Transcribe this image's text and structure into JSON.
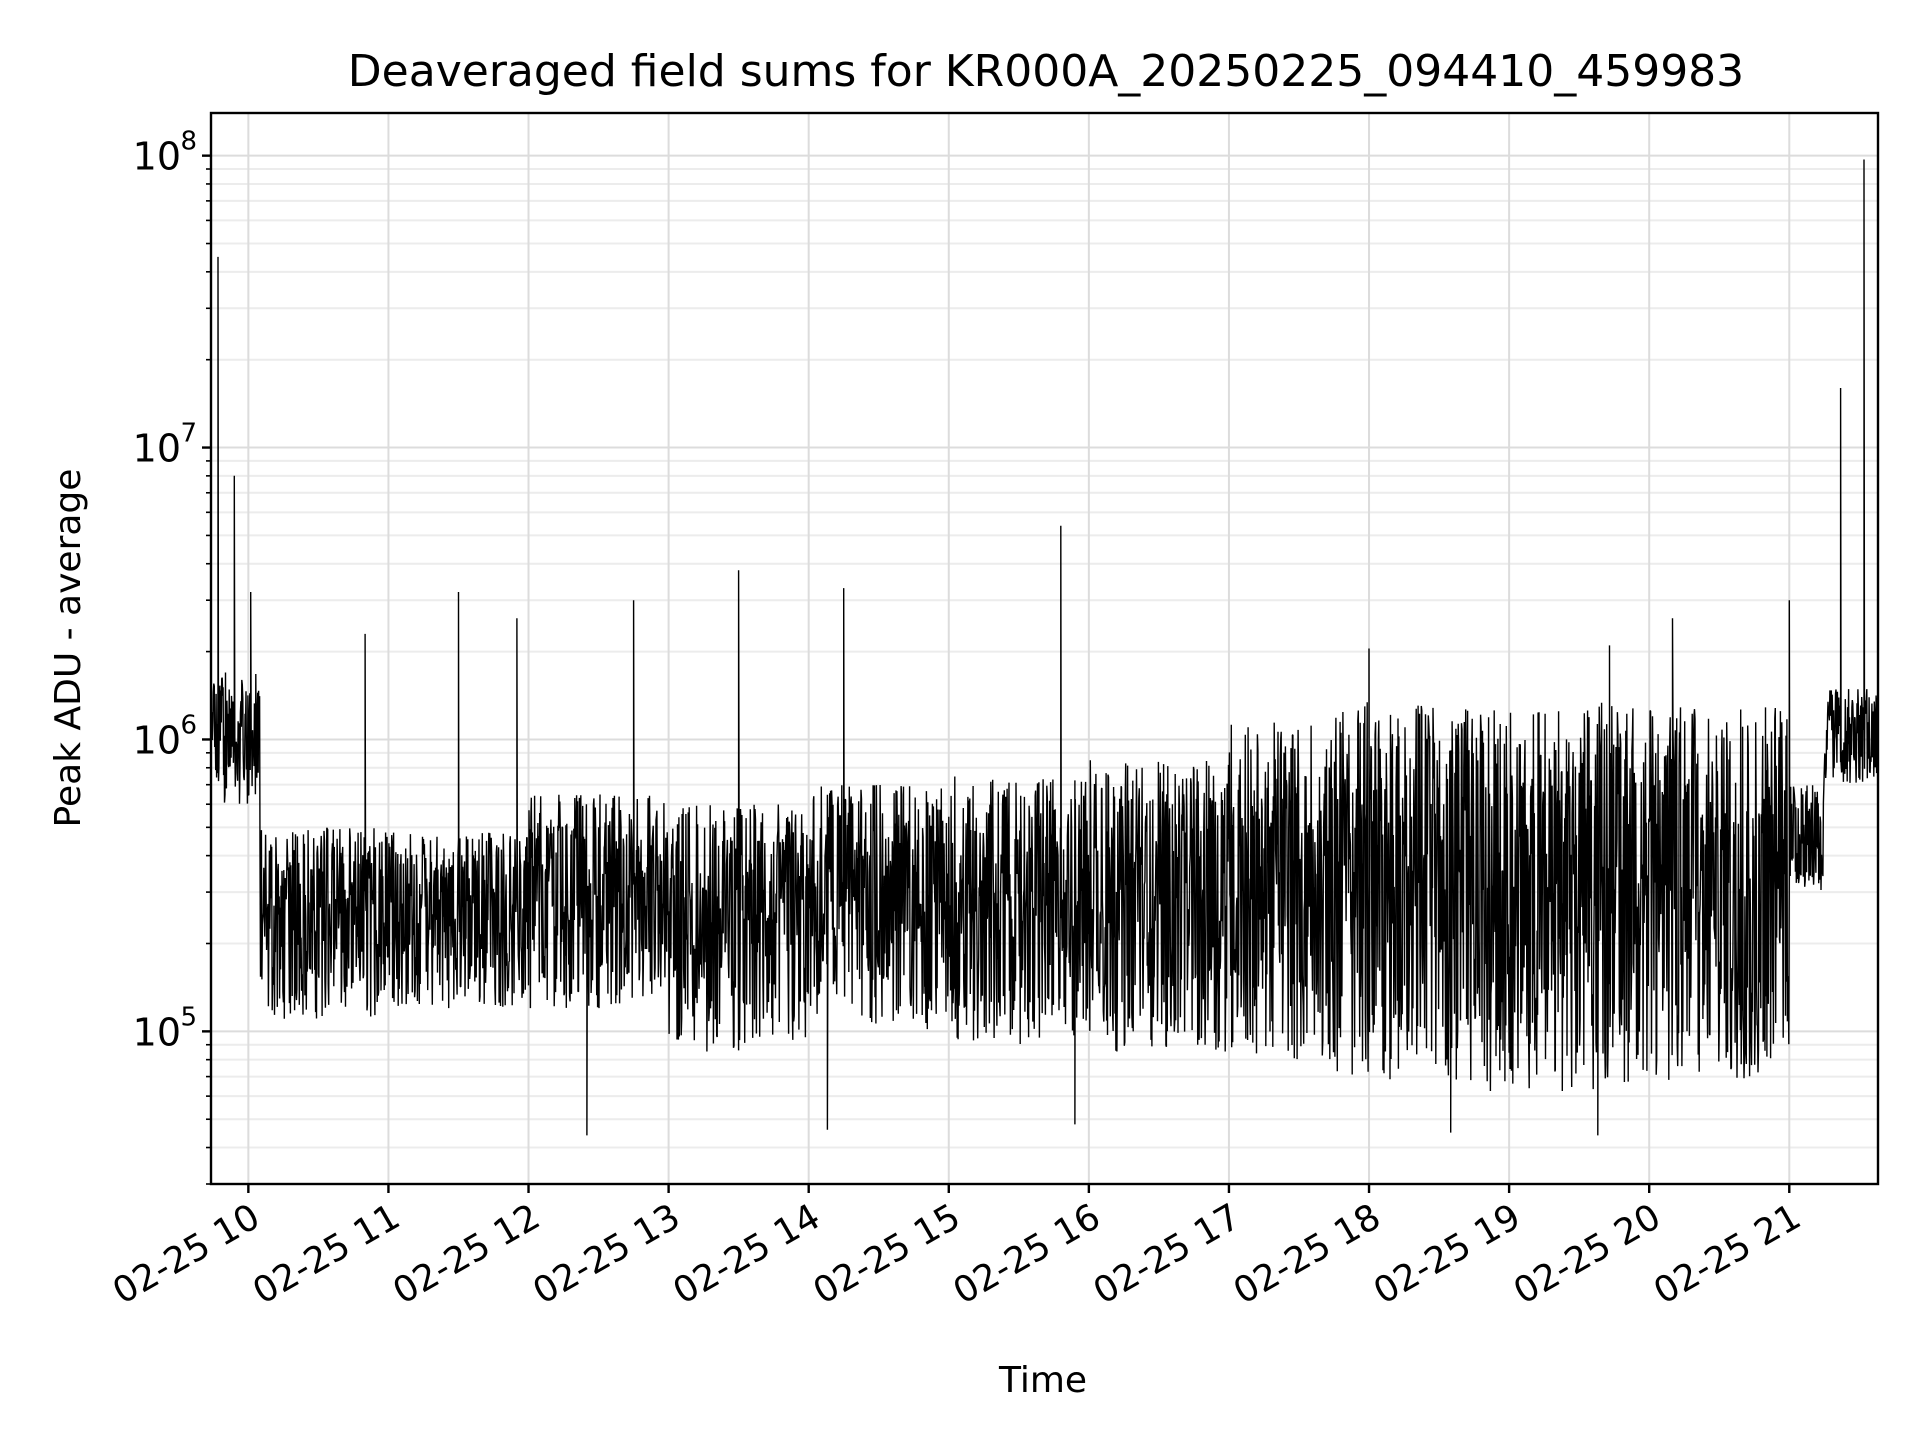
{
  "chart_data": {
    "type": "line",
    "title": "Deaveraged field sums for KR000A_20250225_094410_459983",
    "xlabel": "Time",
    "ylabel": "Peak ADU - average",
    "yscale": "log",
    "ylim": [
      30000,
      140000000
    ],
    "xlim": [
      "2025-02-25 09:44",
      "2025-02-25 21:38"
    ],
    "grid": true,
    "grid_minor_y": true,
    "line_color": "#000000",
    "x_ticks": [
      {
        "value": "2025-02-25 10:00",
        "label": "02-25 10"
      },
      {
        "value": "2025-02-25 11:00",
        "label": "02-25 11"
      },
      {
        "value": "2025-02-25 12:00",
        "label": "02-25 12"
      },
      {
        "value": "2025-02-25 13:00",
        "label": "02-25 13"
      },
      {
        "value": "2025-02-25 14:00",
        "label": "02-25 14"
      },
      {
        "value": "2025-02-25 15:00",
        "label": "02-25 15"
      },
      {
        "value": "2025-02-25 16:00",
        "label": "02-25 16"
      },
      {
        "value": "2025-02-25 17:00",
        "label": "02-25 17"
      },
      {
        "value": "2025-02-25 18:00",
        "label": "02-25 18"
      },
      {
        "value": "2025-02-25 19:00",
        "label": "02-25 19"
      },
      {
        "value": "2025-02-25 20:00",
        "label": "02-25 20"
      },
      {
        "value": "2025-02-25 21:00",
        "label": "02-25 21"
      }
    ],
    "y_ticks": [
      {
        "value": 100000,
        "base": "10",
        "exp": "5"
      },
      {
        "value": 1000000,
        "base": "10",
        "exp": "6"
      },
      {
        "value": 10000000,
        "base": "10",
        "exp": "7"
      },
      {
        "value": 100000000,
        "base": "10",
        "exp": "8"
      }
    ],
    "series": [
      {
        "style": "dense-oscillating",
        "segments": [
          {
            "start": "2025-02-25 09:44",
            "end": "2025-02-25 10:05",
            "high": 1700000,
            "low": 600000
          },
          {
            "start": "2025-02-25 10:05",
            "end": "2025-02-25 11:00",
            "high": 500000,
            "low": 110000
          },
          {
            "start": "2025-02-25 11:00",
            "end": "2025-02-25 12:00",
            "high": 480000,
            "low": 120000
          },
          {
            "start": "2025-02-25 12:00",
            "end": "2025-02-25 13:00",
            "high": 650000,
            "low": 120000
          },
          {
            "start": "2025-02-25 13:00",
            "end": "2025-02-25 14:00",
            "high": 600000,
            "low": 85000
          },
          {
            "start": "2025-02-25 14:00",
            "end": "2025-02-25 15:00",
            "high": 700000,
            "low": 100000
          },
          {
            "start": "2025-02-25 15:00",
            "end": "2025-02-25 16:00",
            "high": 750000,
            "low": 90000
          },
          {
            "start": "2025-02-25 16:00",
            "end": "2025-02-25 17:00",
            "high": 850000,
            "low": 85000
          },
          {
            "start": "2025-02-25 17:00",
            "end": "2025-02-25 17:45",
            "high": 1150000,
            "low": 80000
          },
          {
            "start": "2025-02-25 17:45",
            "end": "2025-02-25 18:45",
            "high": 1350000,
            "low": 68000
          },
          {
            "start": "2025-02-25 18:45",
            "end": "2025-02-25 19:45",
            "high": 1350000,
            "low": 62000
          },
          {
            "start": "2025-02-25 19:45",
            "end": "2025-02-25 21:00",
            "high": 1300000,
            "low": 66000
          },
          {
            "start": "2025-02-25 21:00",
            "end": "2025-02-25 21:15",
            "high": 700000,
            "low": 300000
          },
          {
            "start": "2025-02-25 21:15",
            "end": "2025-02-25 21:38",
            "high": 1500000,
            "low": 700000
          }
        ],
        "spikes": [
          {
            "time": "2025-02-25 09:47",
            "value": 45000000
          },
          {
            "time": "2025-02-25 09:54",
            "value": 8000000
          },
          {
            "time": "2025-02-25 10:01",
            "value": 3200000
          },
          {
            "time": "2025-02-25 10:50",
            "value": 2300000
          },
          {
            "time": "2025-02-25 11:30",
            "value": 3200000
          },
          {
            "time": "2025-02-25 11:55",
            "value": 2600000
          },
          {
            "time": "2025-02-25 12:45",
            "value": 3000000
          },
          {
            "time": "2025-02-25 13:30",
            "value": 3800000
          },
          {
            "time": "2025-02-25 14:15",
            "value": 3300000
          },
          {
            "time": "2025-02-25 15:48",
            "value": 5400000
          },
          {
            "time": "2025-02-25 18:00",
            "value": 2050000
          },
          {
            "time": "2025-02-25 19:43",
            "value": 2100000
          },
          {
            "time": "2025-02-25 20:10",
            "value": 2600000
          },
          {
            "time": "2025-02-25 21:00",
            "value": 3000000
          },
          {
            "time": "2025-02-25 21:22",
            "value": 16000000
          },
          {
            "time": "2025-02-25 21:32",
            "value": 97000000
          }
        ],
        "dips": [
          {
            "time": "2025-02-25 12:25",
            "value": 44000
          },
          {
            "time": "2025-02-25 14:08",
            "value": 46000
          },
          {
            "time": "2025-02-25 15:54",
            "value": 48000
          },
          {
            "time": "2025-02-25 18:35",
            "value": 45000
          },
          {
            "time": "2025-02-25 19:38",
            "value": 44000
          }
        ]
      }
    ]
  }
}
